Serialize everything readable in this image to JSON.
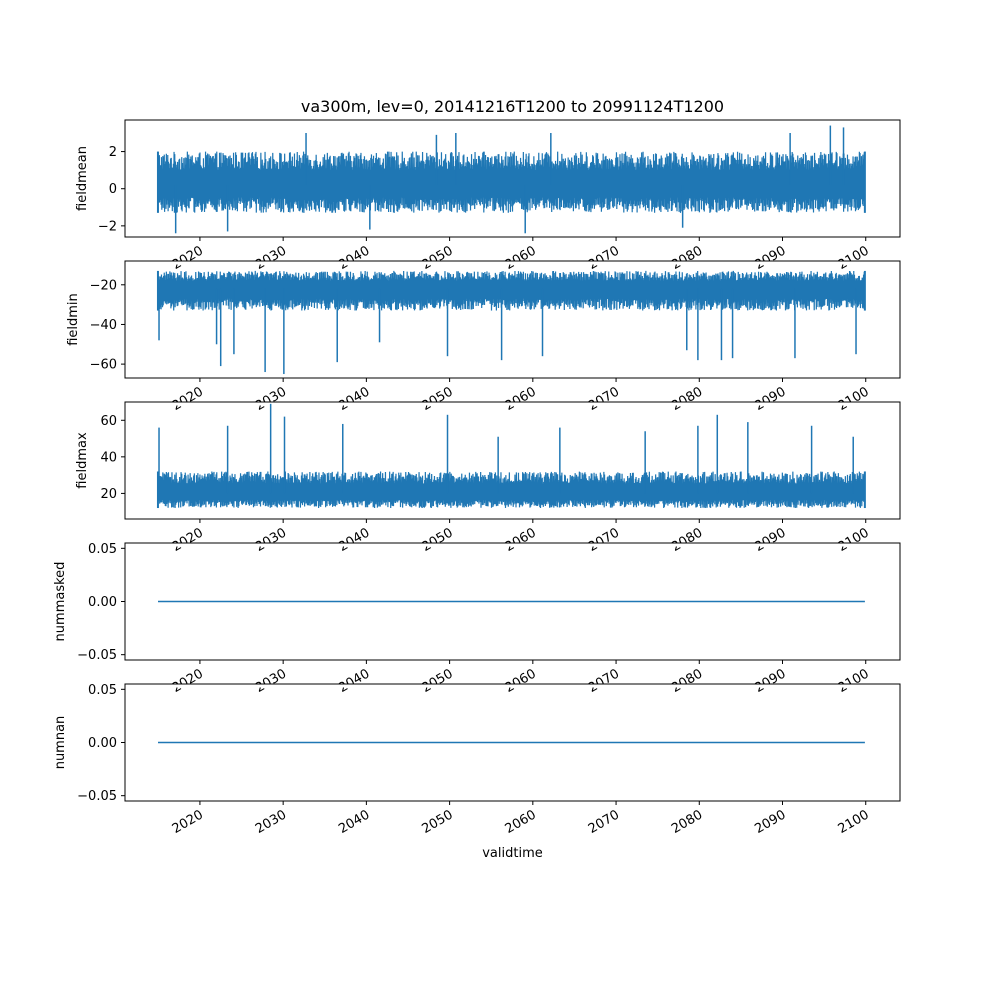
{
  "figure": {
    "title": "va300m, lev=0, 20141216T1200 to 20991124T1200",
    "xlabel": "validtime"
  },
  "colors": {
    "line": "#1f77b4",
    "axis": "#000000",
    "background": "#ffffff"
  },
  "x_axis": {
    "type": "date",
    "range": [
      "2010-12-31",
      "2104-02-14"
    ],
    "ticks": [
      "2020",
      "2030",
      "2040",
      "2050",
      "2060",
      "2070",
      "2080",
      "2090",
      "2100"
    ],
    "tick_label_rotation": "30deg",
    "tick_labels_shown_fully_on": "bottom panel only"
  },
  "chart_data": [
    {
      "type": "line",
      "ylabel": "fieldmean",
      "ylim": [
        -2.6,
        3.7
      ],
      "yticks": [
        "2",
        "0",
        "−2"
      ],
      "ytick_values": [
        2,
        0,
        -2
      ],
      "data_start": "2014-12-16T12:00",
      "data_end": "2099-11-24T12:00",
      "series": [
        {
          "x": [
            "2014-12-16T12:00",
            "2015-06-16T12:00",
            "2015-12-16T12:00",
            "2016-06-16T12:00",
            "2099-11-24T12:00"
          ],
          "values_summary": {
            "typical_low": -1.3,
            "typical_high": 2.0,
            "baseline": 0.2,
            "min": -2.4,
            "max": 3.4
          }
        }
      ],
      "notable_spikes": [
        {
          "x": "2095-10-01",
          "y": 3.4
        },
        {
          "x": "2090-12-01",
          "y": 3.0
        },
        {
          "x": "2097-05-01",
          "y": 3.3
        },
        {
          "x": "2050-10-01",
          "y": 3.0
        },
        {
          "x": "2032-10-01",
          "y": 3.0
        },
        {
          "x": "2048-06-01",
          "y": 2.9
        },
        {
          "x": "2062-03-01",
          "y": 3.0
        },
        {
          "x": "2017-02-01",
          "y": -2.4
        },
        {
          "x": "2023-05-01",
          "y": -2.3
        },
        {
          "x": "2059-02-01",
          "y": -2.4
        },
        {
          "x": "2040-06-01",
          "y": -2.2
        },
        {
          "x": "2078-01-01",
          "y": -2.1
        }
      ]
    },
    {
      "type": "line",
      "ylabel": "fieldmin",
      "ylim": [
        -67,
        -8
      ],
      "yticks": [
        "−20",
        "−40",
        "−60"
      ],
      "ytick_values": [
        -20,
        -40,
        -60
      ],
      "data_start": "2014-12-16T12:00",
      "data_end": "2099-11-24T12:00",
      "series": [
        {
          "values_summary": {
            "typical_low": -33,
            "typical_high": -13,
            "baseline": -22,
            "min": -65,
            "max": -10
          }
        }
      ],
      "notable_spikes": [
        {
          "x": "2015-02-01",
          "y": -48
        },
        {
          "x": "2022-01-01",
          "y": -50
        },
        {
          "x": "2022-07-01",
          "y": -61
        },
        {
          "x": "2024-02-01",
          "y": -55
        },
        {
          "x": "2027-11-01",
          "y": -64
        },
        {
          "x": "2030-02-01",
          "y": -65
        },
        {
          "x": "2036-07-01",
          "y": -59
        },
        {
          "x": "2041-08-01",
          "y": -49
        },
        {
          "x": "2049-10-01",
          "y": -56
        },
        {
          "x": "2056-04-01",
          "y": -58
        },
        {
          "x": "2061-03-01",
          "y": -56
        },
        {
          "x": "2078-07-01",
          "y": -53
        },
        {
          "x": "2079-11-01",
          "y": -58
        },
        {
          "x": "2082-09-01",
          "y": -58
        },
        {
          "x": "2084-01-01",
          "y": -57
        },
        {
          "x": "2091-07-01",
          "y": -57
        },
        {
          "x": "2098-11-01",
          "y": -55
        }
      ]
    },
    {
      "type": "line",
      "ylabel": "fieldmax",
      "ylim": [
        6,
        70
      ],
      "yticks": [
        "60",
        "40",
        "20"
      ],
      "ytick_values": [
        60,
        40,
        20
      ],
      "data_start": "2014-12-16T12:00",
      "data_end": "2099-11-24T12:00",
      "series": [
        {
          "values_summary": {
            "typical_low": 12,
            "typical_high": 32,
            "baseline": 20,
            "min": 9,
            "max": 69
          }
        }
      ],
      "notable_spikes": [
        {
          "x": "2015-02-01",
          "y": 56
        },
        {
          "x": "2023-05-01",
          "y": 57
        },
        {
          "x": "2028-07-01",
          "y": 69
        },
        {
          "x": "2030-03-01",
          "y": 62
        },
        {
          "x": "2037-03-01",
          "y": 58
        },
        {
          "x": "2049-10-01",
          "y": 63
        },
        {
          "x": "2055-11-01",
          "y": 51
        },
        {
          "x": "2063-04-01",
          "y": 56
        },
        {
          "x": "2073-07-01",
          "y": 54
        },
        {
          "x": "2079-11-01",
          "y": 57
        },
        {
          "x": "2082-03-01",
          "y": 63
        },
        {
          "x": "2085-11-01",
          "y": 59
        },
        {
          "x": "2093-07-01",
          "y": 57
        },
        {
          "x": "2098-07-01",
          "y": 51
        }
      ]
    },
    {
      "type": "line",
      "ylabel": "nummasked",
      "ylim": [
        -0.055,
        0.055
      ],
      "yticks": [
        "0.05",
        "0.00",
        "−0.05"
      ],
      "ytick_values": [
        0.05,
        0.0,
        -0.05
      ],
      "series": [
        {
          "x": [
            "2014-12-16T12:00",
            "2099-11-24T12:00"
          ],
          "values": [
            0,
            0
          ]
        }
      ]
    },
    {
      "type": "line",
      "ylabel": "numnan",
      "ylim": [
        -0.055,
        0.055
      ],
      "yticks": [
        "0.05",
        "0.00",
        "−0.05"
      ],
      "ytick_values": [
        0.05,
        0.0,
        -0.05
      ],
      "series": [
        {
          "x": [
            "2014-12-16T12:00",
            "2099-11-24T12:00"
          ],
          "values": [
            0,
            0
          ]
        }
      ]
    }
  ]
}
